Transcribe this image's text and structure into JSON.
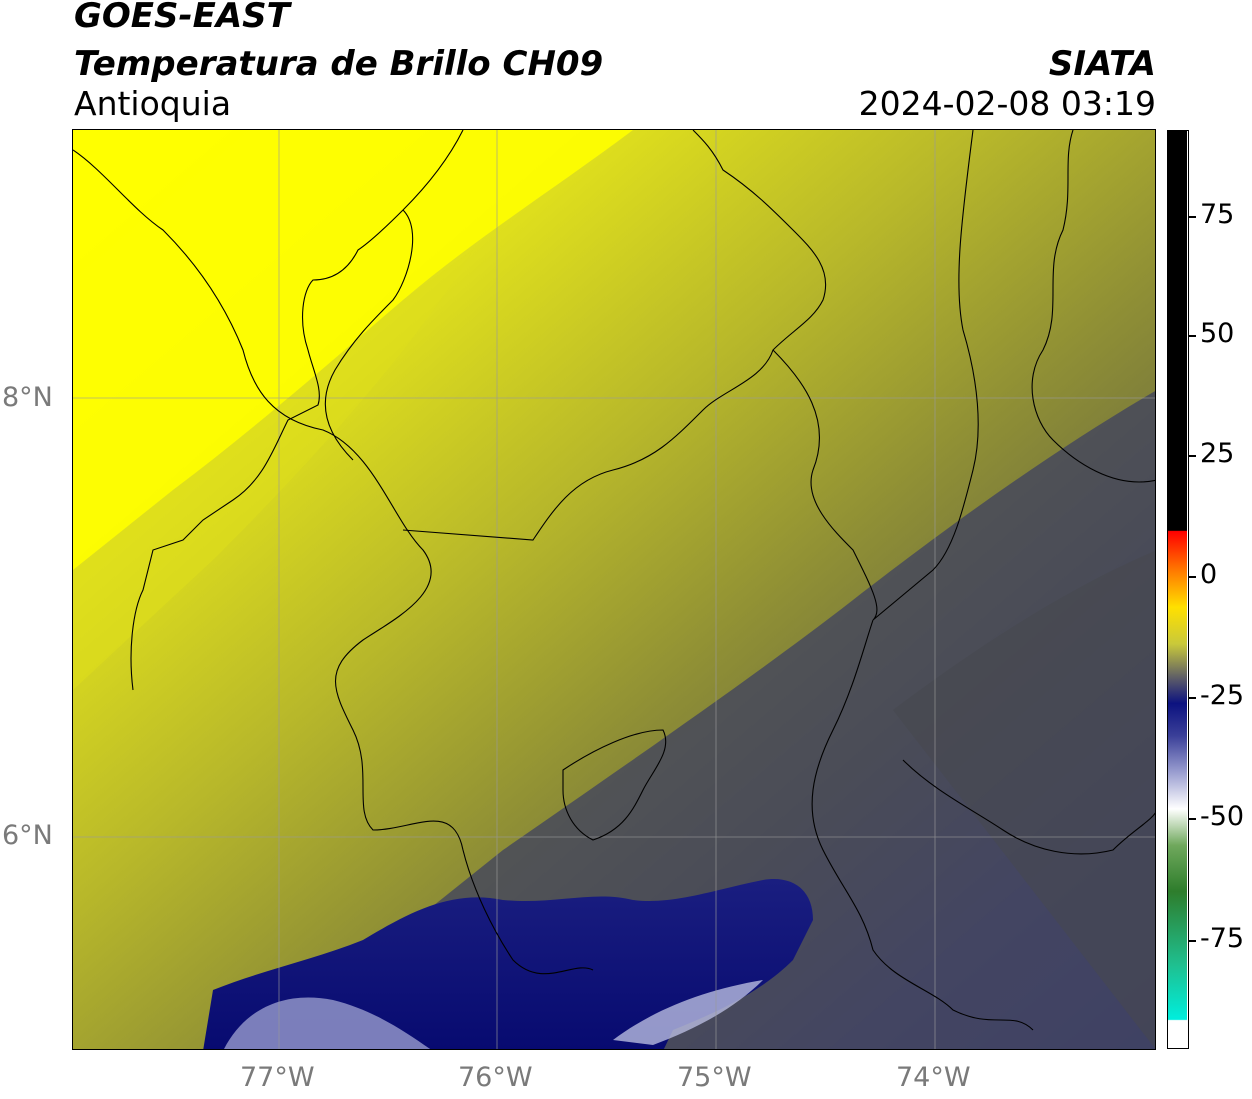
{
  "header": {
    "satellite": "GOES-EAST",
    "variable": "Temperatura de Brillo CH09",
    "region": "Antioquia",
    "organization": "SIATA",
    "datetime": "2024-02-08 03:19"
  },
  "map": {
    "lat_labels": [
      "8°N",
      "6°N"
    ],
    "lon_labels": [
      "77°W",
      "76°W",
      "75°W",
      "74°W"
    ],
    "grid": true
  },
  "colorbar": {
    "tick_labels": [
      "75",
      "50",
      "25",
      "0",
      "-25",
      "-50",
      "-75"
    ],
    "colors": {
      "black": "#000000",
      "red": "#ff0000",
      "orange": "#ff9a00",
      "yellow": "#ffff00",
      "olive": "#8a8a35",
      "slate": "#3b3f5c",
      "navy": "#0c1280",
      "white": "#ffffff",
      "green": "#3f8a2a",
      "cyan": "#00e5d4"
    }
  }
}
